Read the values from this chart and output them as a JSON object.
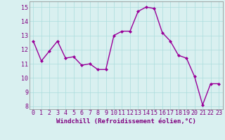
{
  "x": [
    0,
    1,
    2,
    3,
    4,
    5,
    6,
    7,
    8,
    9,
    10,
    11,
    12,
    13,
    14,
    15,
    16,
    17,
    18,
    19,
    20,
    21,
    22,
    23
  ],
  "y": [
    12.6,
    11.2,
    11.9,
    12.6,
    11.4,
    11.5,
    10.9,
    11.0,
    10.6,
    10.6,
    13.0,
    13.3,
    13.3,
    14.7,
    15.0,
    14.9,
    13.2,
    12.6,
    11.6,
    11.4,
    10.1,
    8.1,
    9.6,
    9.6
  ],
  "line_color": "#990099",
  "marker": "D",
  "marker_size": 2,
  "bg_color": "#d9f0f0",
  "grid_color": "#aadddd",
  "xlabel": "Windchill (Refroidissement éolien,°C)",
  "xlabel_color": "#800080",
  "xlabel_fontsize": 6.5,
  "ylabel_ticks": [
    8,
    9,
    10,
    11,
    12,
    13,
    14,
    15
  ],
  "xtick_labels": [
    "0",
    "1",
    "2",
    "3",
    "4",
    "5",
    "6",
    "7",
    "8",
    "9",
    "10",
    "11",
    "12",
    "13",
    "14",
    "15",
    "16",
    "17",
    "18",
    "19",
    "20",
    "21",
    "22",
    "23"
  ],
  "xlim": [
    -0.5,
    23.5
  ],
  "ylim": [
    7.8,
    15.4
  ],
  "tick_color": "#800080",
  "tick_fontsize": 6,
  "line_width": 1.0
}
